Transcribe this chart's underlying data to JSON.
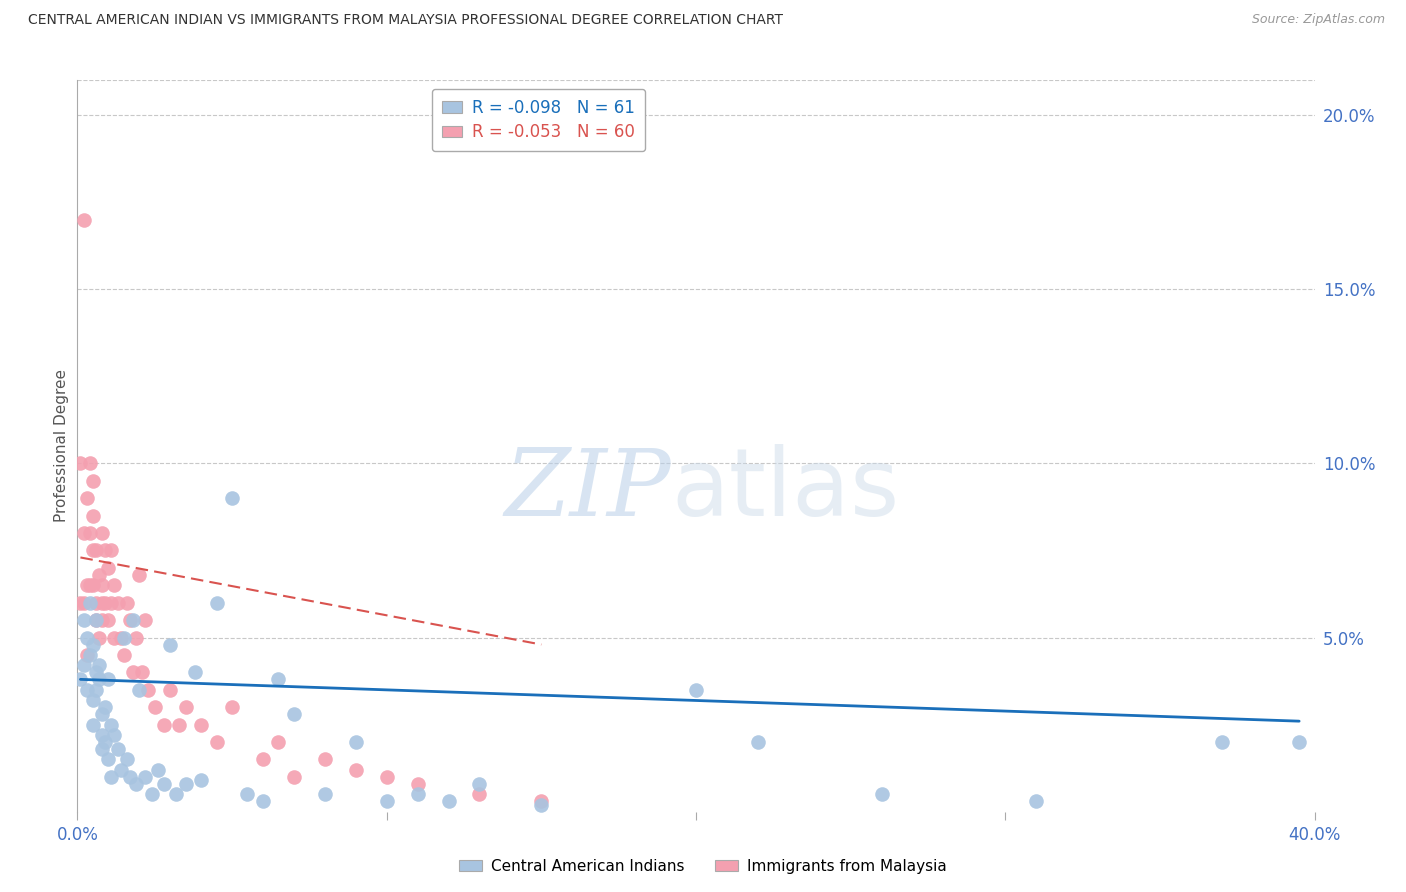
{
  "title": "CENTRAL AMERICAN INDIAN VS IMMIGRANTS FROM MALAYSIA PROFESSIONAL DEGREE CORRELATION CHART",
  "source": "Source: ZipAtlas.com",
  "ylabel": "Professional Degree",
  "xlim": [
    0.0,
    0.4
  ],
  "ylim": [
    0.0,
    0.21
  ],
  "blue_label": "Central American Indians",
  "pink_label": "Immigrants from Malaysia",
  "blue_R": -0.098,
  "blue_N": 61,
  "pink_R": -0.053,
  "pink_N": 60,
  "blue_color": "#a8c4e0",
  "pink_color": "#f4a0b0",
  "blue_line_color": "#1a6fba",
  "pink_line_color": "#d9534f",
  "background_color": "#ffffff",
  "watermark_zip": "ZIP",
  "watermark_atlas": "atlas",
  "blue_scatter_x": [
    0.001,
    0.002,
    0.002,
    0.003,
    0.003,
    0.004,
    0.004,
    0.005,
    0.005,
    0.005,
    0.006,
    0.006,
    0.006,
    0.007,
    0.007,
    0.008,
    0.008,
    0.008,
    0.009,
    0.009,
    0.01,
    0.01,
    0.011,
    0.011,
    0.012,
    0.013,
    0.014,
    0.015,
    0.016,
    0.017,
    0.018,
    0.019,
    0.02,
    0.022,
    0.024,
    0.026,
    0.028,
    0.03,
    0.032,
    0.035,
    0.038,
    0.04,
    0.045,
    0.05,
    0.055,
    0.06,
    0.065,
    0.07,
    0.08,
    0.09,
    0.1,
    0.11,
    0.12,
    0.13,
    0.15,
    0.2,
    0.22,
    0.26,
    0.31,
    0.37,
    0.395
  ],
  "blue_scatter_y": [
    0.038,
    0.042,
    0.055,
    0.035,
    0.05,
    0.045,
    0.06,
    0.032,
    0.048,
    0.025,
    0.04,
    0.035,
    0.055,
    0.038,
    0.042,
    0.028,
    0.022,
    0.018,
    0.03,
    0.02,
    0.038,
    0.015,
    0.025,
    0.01,
    0.022,
    0.018,
    0.012,
    0.05,
    0.015,
    0.01,
    0.055,
    0.008,
    0.035,
    0.01,
    0.005,
    0.012,
    0.008,
    0.048,
    0.005,
    0.008,
    0.04,
    0.009,
    0.06,
    0.09,
    0.005,
    0.003,
    0.038,
    0.028,
    0.005,
    0.02,
    0.003,
    0.005,
    0.003,
    0.008,
    0.002,
    0.035,
    0.02,
    0.005,
    0.003,
    0.02,
    0.02
  ],
  "pink_scatter_x": [
    0.001,
    0.001,
    0.002,
    0.002,
    0.002,
    0.003,
    0.003,
    0.003,
    0.004,
    0.004,
    0.004,
    0.005,
    0.005,
    0.005,
    0.005,
    0.006,
    0.006,
    0.006,
    0.007,
    0.007,
    0.008,
    0.008,
    0.008,
    0.008,
    0.009,
    0.009,
    0.01,
    0.01,
    0.011,
    0.011,
    0.012,
    0.012,
    0.013,
    0.014,
    0.015,
    0.016,
    0.017,
    0.018,
    0.019,
    0.02,
    0.021,
    0.022,
    0.023,
    0.025,
    0.028,
    0.03,
    0.033,
    0.035,
    0.04,
    0.045,
    0.05,
    0.06,
    0.065,
    0.07,
    0.08,
    0.09,
    0.1,
    0.11,
    0.13,
    0.15
  ],
  "pink_scatter_y": [
    0.06,
    0.1,
    0.06,
    0.08,
    0.17,
    0.045,
    0.065,
    0.09,
    0.1,
    0.08,
    0.065,
    0.095,
    0.085,
    0.075,
    0.065,
    0.06,
    0.075,
    0.055,
    0.068,
    0.05,
    0.065,
    0.055,
    0.08,
    0.06,
    0.075,
    0.06,
    0.07,
    0.055,
    0.075,
    0.06,
    0.065,
    0.05,
    0.06,
    0.05,
    0.045,
    0.06,
    0.055,
    0.04,
    0.05,
    0.068,
    0.04,
    0.055,
    0.035,
    0.03,
    0.025,
    0.035,
    0.025,
    0.03,
    0.025,
    0.02,
    0.03,
    0.015,
    0.02,
    0.01,
    0.015,
    0.012,
    0.01,
    0.008,
    0.005,
    0.003
  ],
  "blue_trend_x": [
    0.001,
    0.395
  ],
  "blue_trend_y": [
    0.038,
    0.026
  ],
  "pink_trend_x": [
    0.001,
    0.15
  ],
  "pink_trend_y": [
    0.073,
    0.048
  ]
}
